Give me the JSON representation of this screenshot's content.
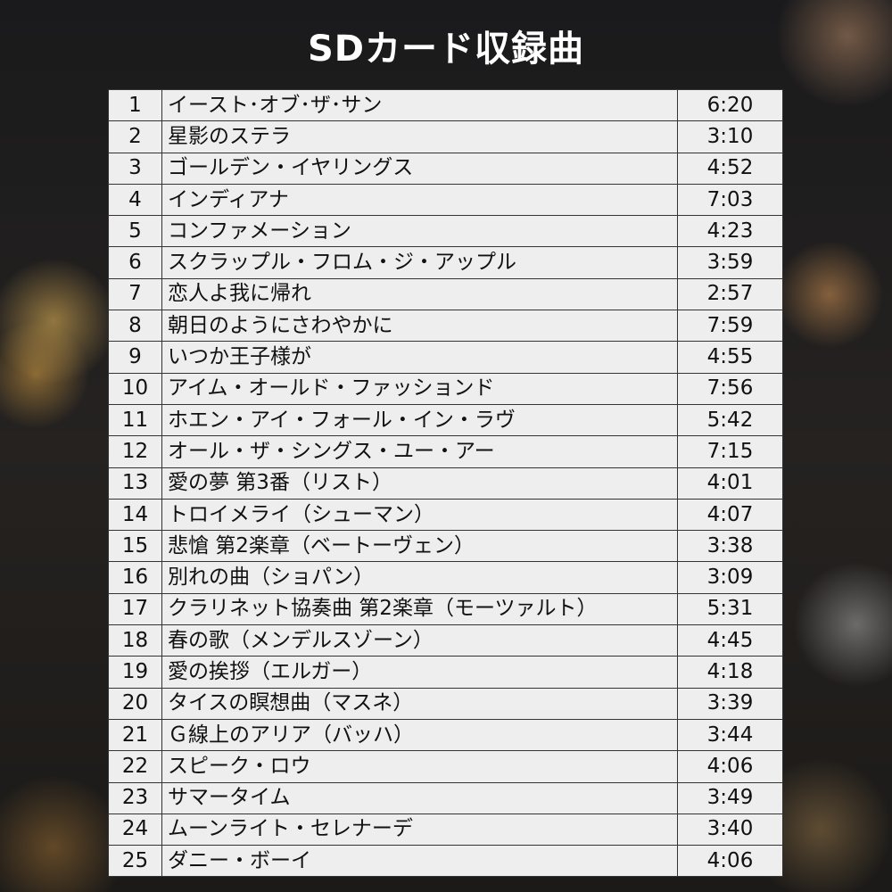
{
  "title": "SDカード収録曲",
  "tracks": [
    [
      "1",
      "イースト･オブ･ザ･サン",
      "6:20"
    ],
    [
      "2",
      "星影のステラ",
      "3:10"
    ],
    [
      "3",
      "ゴールデン・イヤリングス",
      "4:52"
    ],
    [
      "4",
      "インディアナ",
      "7:03"
    ],
    [
      "5",
      "コンファメーション",
      "4:23"
    ],
    [
      "6",
      "スクラップル・フロム・ジ・アップル",
      "3:59"
    ],
    [
      "7",
      "恋人よ我に帰れ",
      "2:57"
    ],
    [
      "8",
      "朝日のようにさわやかに",
      "7:59"
    ],
    [
      "9",
      "いつか王子様が",
      "4:55"
    ],
    [
      "10",
      "アイム・オールド・ファッションド",
      "7:56"
    ],
    [
      "11",
      "ホエン・アイ・フォール・イン・ラヴ",
      "5:42"
    ],
    [
      "12",
      "オール・ザ・シングス・ユー・アー",
      "7:15"
    ],
    [
      "13",
      "愛の夢 第3番（リスト）",
      "4:01"
    ],
    [
      "14",
      "トロイメライ（シューマン）",
      "4:07"
    ],
    [
      "15",
      "悲愴 第2楽章（ベートーヴェン）",
      "3:38"
    ],
    [
      "16",
      "別れの曲（ショパン）",
      "3:09"
    ],
    [
      "17",
      "クラリネット協奏曲 第2楽章（モーツァルト）",
      "5:31"
    ],
    [
      "18",
      "春の歌（メンデルスゾーン）",
      "4:45"
    ],
    [
      "19",
      "愛の挨拶（エルガー）",
      "4:18"
    ],
    [
      "20",
      "タイスの瞑想曲（マスネ）",
      "3:39"
    ],
    [
      "21",
      "Ｇ線上のアリア（バッハ）",
      "3:44"
    ],
    [
      "22",
      "スピーク・ロウ",
      "4:06"
    ],
    [
      "23",
      "サマータイム",
      "3:49"
    ],
    [
      "24",
      "ムーンライト・セレナーデ",
      "3:40"
    ],
    [
      "25",
      "ダニー・ボーイ",
      "4:06"
    ]
  ]
}
